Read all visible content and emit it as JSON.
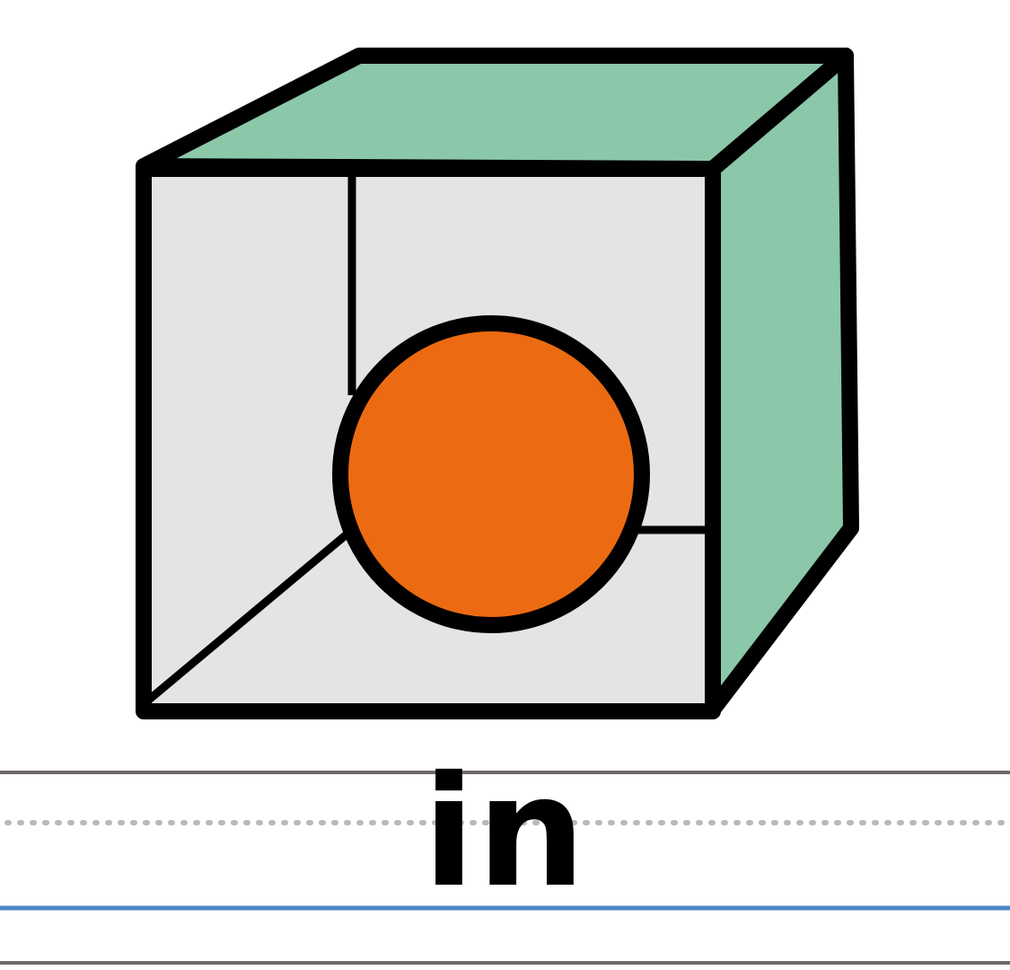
{
  "word": {
    "text": "in"
  },
  "colors": {
    "cube_side": "#8bc7a9",
    "cube_front": "#e4e4e2",
    "ball": "#ec6b12",
    "outline": "#000000",
    "guide_top": "#6f6868",
    "guide_dotted": "#b9b9b9",
    "guide_baseline": "#4a86c4",
    "guide_bottom": "#6f6868"
  },
  "illustration": {
    "object": "cube",
    "item": "ball"
  }
}
